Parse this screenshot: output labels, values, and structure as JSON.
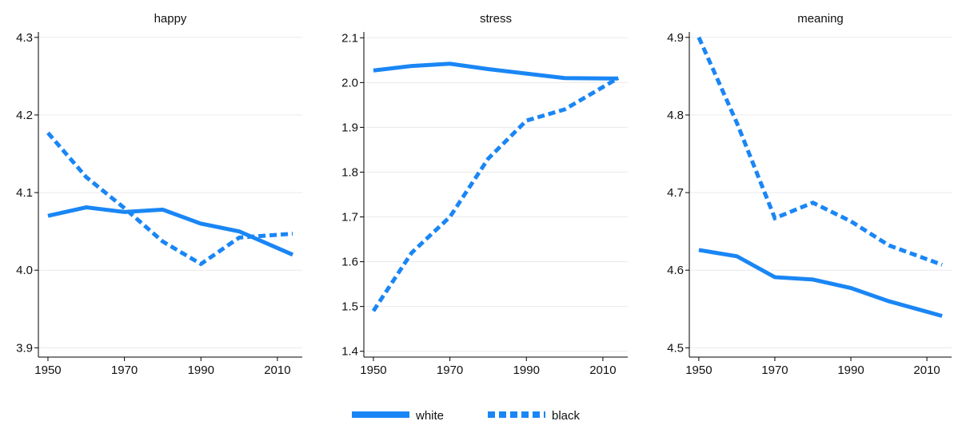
{
  "chart_data": [
    {
      "type": "line",
      "title": "happy",
      "x": [
        1950,
        1960,
        1970,
        1980,
        1990,
        2000,
        2014
      ],
      "series": [
        {
          "name": "white",
          "color": "#1a86f5",
          "linestyle": "solid",
          "values": [
            4.07,
            4.081,
            4.075,
            4.078,
            4.06,
            4.05,
            4.02
          ]
        },
        {
          "name": "black",
          "color": "#1a86f5",
          "linestyle": "dash",
          "values": [
            4.177,
            4.12,
            4.08,
            4.037,
            4.008,
            4.042,
            4.047
          ]
        }
      ],
      "xlim": [
        1947.5,
        2016.5
      ],
      "xticks": [
        1950,
        1970,
        1990,
        2010
      ],
      "ylim": [
        3.888,
        4.307
      ],
      "yticks": [
        {
          "value": 3.9,
          "label": "3.9"
        },
        {
          "value": 4.0,
          "label": "4.0"
        },
        {
          "value": 4.1,
          "label": "4.1"
        },
        {
          "value": 4.2,
          "label": "4.2"
        },
        {
          "value": 4.3,
          "label": "4.3"
        }
      ],
      "grid": true
    },
    {
      "type": "line",
      "title": "stress",
      "x": [
        1950,
        1960,
        1970,
        1980,
        1990,
        2000,
        2014
      ],
      "series": [
        {
          "color": "#1a86f5",
          "linestyle": "solid",
          "values": [
            2.027,
            2.037,
            2.042,
            2.03,
            2.02,
            2.01,
            2.009
          ]
        },
        {
          "color": "#1a86f5",
          "linestyle": "dash",
          "values": [
            1.49,
            1.62,
            1.7,
            1.83,
            1.915,
            1.94,
            2.01
          ]
        }
      ],
      "xlim": [
        1947.5,
        2016.5
      ],
      "xticks": [
        1950,
        1970,
        1990,
        2010
      ],
      "ylim": [
        1.387,
        2.113
      ],
      "yticks": [
        1.4,
        1.5,
        1.6,
        1.7,
        1.8,
        1.9,
        {
          "value": 2.0,
          "label": "2.0"
        },
        2.1
      ],
      "grid": true
    },
    {
      "type": "line",
      "title": "meaning",
      "x": [
        1950,
        1960,
        1970,
        1980,
        1990,
        2000,
        2014
      ],
      "series": [
        {
          "color": "#1a86f5",
          "linestyle": "solid",
          "values": [
            4.626,
            4.618,
            4.591,
            4.588,
            4.577,
            4.56,
            4.541
          ]
        },
        {
          "color": "#1a86f5",
          "linestyle": "dash",
          "values": [
            4.9,
            4.79,
            4.667,
            4.687,
            4.663,
            4.632,
            4.607
          ]
        }
      ],
      "xlim": [
        1947.5,
        2016.5
      ],
      "xticks": [
        1950,
        1970,
        1990,
        2010
      ],
      "ylim": [
        4.488,
        4.907
      ],
      "yticks": [
        4.5,
        4.6,
        4.7,
        4.8,
        4.9
      ],
      "grid": true
    }
  ]
}
